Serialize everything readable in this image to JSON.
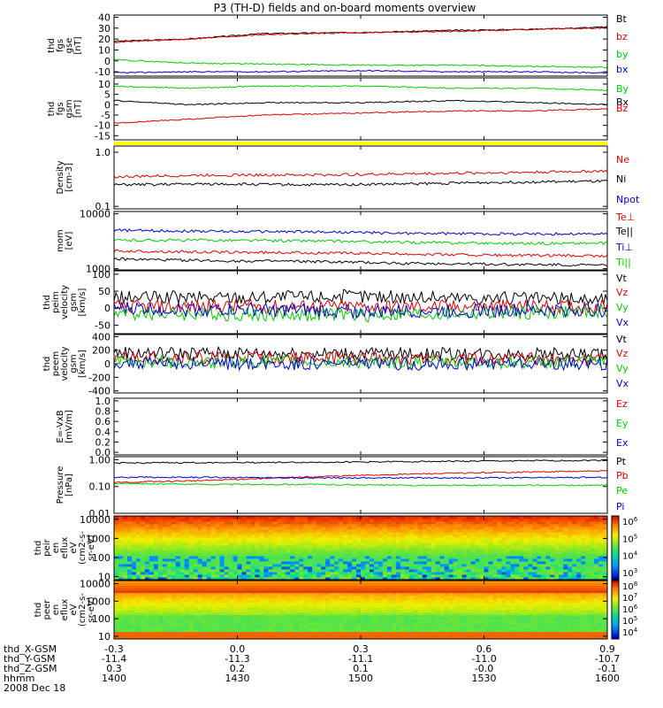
{
  "title": "P3 (TH-D) fields and on-board moments overview",
  "colors": {
    "black": "#000000",
    "red": "#dd0000",
    "green": "#00cc00",
    "blue": "#0000cc",
    "yellow": "#ffff00"
  },
  "chart_data": [
    {
      "type": "line",
      "id": "fgs_gse",
      "ylabel": [
        "thd",
        "fgs",
        "gse",
        "[nT]"
      ],
      "yticks": [
        "40",
        "30",
        "20",
        "10",
        "0",
        "-10"
      ],
      "ylim": [
        -14,
        42
      ],
      "series": [
        {
          "name": "Bt",
          "color": "#000000",
          "x": [
            0,
            0.15,
            0.3,
            0.5,
            0.7,
            0.85,
            1
          ],
          "y": [
            18,
            20,
            25,
            26,
            28,
            29,
            31
          ]
        },
        {
          "name": "bz",
          "color": "#dd0000",
          "x": [
            0,
            0.15,
            0.3,
            0.5,
            0.7,
            0.85,
            1
          ],
          "y": [
            17,
            20,
            24,
            26,
            27,
            29,
            30
          ]
        },
        {
          "name": "by",
          "color": "#00cc00",
          "x": [
            0,
            0.15,
            0.3,
            0.5,
            0.7,
            0.85,
            1
          ],
          "y": [
            1,
            -2,
            -3,
            -4,
            -4,
            -5,
            -6
          ]
        },
        {
          "name": "bx",
          "color": "#0000cc",
          "x": [
            0,
            0.15,
            0.3,
            0.5,
            0.7,
            0.85,
            1
          ],
          "y": [
            -11,
            -10,
            -10,
            -9,
            -10,
            -10,
            -11
          ]
        }
      ]
    },
    {
      "type": "line",
      "id": "fgs_gsm",
      "ylabel": [
        "thd",
        "fgs",
        "gsm",
        "[nT]"
      ],
      "yticks": [
        "10",
        "5",
        "0",
        "-5",
        "-10",
        "-15"
      ],
      "ylim": [
        -17,
        13
      ],
      "series": [
        {
          "name": "By",
          "color": "#00cc00",
          "x": [
            0,
            0.15,
            0.3,
            0.5,
            0.7,
            0.85,
            1
          ],
          "y": [
            9,
            8,
            9,
            9,
            8,
            8,
            7
          ]
        },
        {
          "name": "Bx",
          "color": "#000000",
          "x": [
            0,
            0.15,
            0.3,
            0.5,
            0.7,
            0.85,
            1
          ],
          "y": [
            2,
            0,
            1,
            1,
            2,
            1,
            0
          ]
        },
        {
          "name": "Bz",
          "color": "#dd0000",
          "x": [
            0,
            0.15,
            0.3,
            0.5,
            0.7,
            0.85,
            1
          ],
          "y": [
            -9,
            -7,
            -5,
            -4,
            -3,
            -3,
            -2
          ]
        }
      ]
    },
    {
      "type": "line",
      "id": "density",
      "scale": "log",
      "ylabel": [
        "Density",
        "[cm-3]"
      ],
      "yticks": [
        "1.0",
        "0.1"
      ],
      "ylim": [
        0.09,
        1.3
      ],
      "series": [
        {
          "name": "Ne",
          "color": "#dd0000",
          "x": [
            0,
            0.2,
            0.4,
            0.6,
            0.8,
            1
          ],
          "y": [
            0.35,
            0.38,
            0.38,
            0.4,
            0.42,
            0.45
          ]
        },
        {
          "name": "Ni",
          "color": "#000000",
          "x": [
            0,
            0.2,
            0.4,
            0.6,
            0.8,
            1
          ],
          "y": [
            0.25,
            0.26,
            0.25,
            0.26,
            0.28,
            0.29
          ]
        },
        {
          "name": "Npot",
          "color": "#0000cc",
          "x": [],
          "y": []
        }
      ]
    },
    {
      "type": "line",
      "id": "temperature",
      "scale": "log",
      "ylabel": [
        "mom",
        "[eV]"
      ],
      "yticks": [
        "10000",
        "1000"
      ],
      "ylim": [
        950,
        11000
      ],
      "series": [
        {
          "name": "Te⊥",
          "color": "#dd0000",
          "x": [
            0,
            0.2,
            0.4,
            0.6,
            0.8,
            1
          ],
          "y": [
            2100,
            2000,
            1950,
            1850,
            1750,
            1700
          ]
        },
        {
          "name": "Te||",
          "color": "#000000",
          "x": [
            0,
            0.2,
            0.4,
            0.6,
            0.8,
            1
          ],
          "y": [
            1500,
            1400,
            1350,
            1250,
            1200,
            1150
          ]
        },
        {
          "name": "Ti⊥",
          "color": "#0000cc",
          "x": [
            0,
            0.2,
            0.4,
            0.6,
            0.8,
            1
          ],
          "y": [
            5000,
            4800,
            4700,
            4400,
            4300,
            4300
          ]
        },
        {
          "name": "Ti||",
          "color": "#00cc00",
          "x": [
            0,
            0.2,
            0.4,
            0.6,
            0.8,
            1
          ],
          "y": [
            3300,
            3300,
            3200,
            3000,
            2900,
            2900
          ]
        }
      ]
    },
    {
      "type": "line",
      "id": "peim_velocity",
      "ylabel": [
        "thd",
        "peim",
        "velocity",
        "gsm",
        "[km/s]"
      ],
      "yticks": [
        "100",
        "50",
        "0",
        "-50"
      ],
      "ylim": [
        -75,
        110
      ],
      "series": [
        {
          "name": "Vt",
          "color": "#000000",
          "x": [
            0,
            0.5,
            1
          ],
          "y": [
            30,
            35,
            25
          ]
        },
        {
          "name": "Vz",
          "color": "#dd0000",
          "x": [
            0,
            0.5,
            1
          ],
          "y": [
            5,
            5,
            5
          ]
        },
        {
          "name": "Vy",
          "color": "#00cc00",
          "x": [
            0,
            0.5,
            1
          ],
          "y": [
            -15,
            -20,
            -10
          ]
        },
        {
          "name": "Vx",
          "color": "#0000cc",
          "x": [
            0,
            0.5,
            1
          ],
          "y": [
            0,
            -10,
            -5
          ]
        }
      ]
    },
    {
      "type": "line",
      "id": "peem_velocity",
      "ylabel": [
        "thd",
        "peem",
        "velocity",
        "gsm",
        "[km/s]"
      ],
      "yticks": [
        "400",
        "200",
        "0",
        "-200",
        "-400"
      ],
      "ylim": [
        -430,
        430
      ],
      "series": [
        {
          "name": "Vt",
          "color": "#000000",
          "x": [
            0,
            0.5,
            1
          ],
          "y": [
            160,
            150,
            140
          ]
        },
        {
          "name": "Vz",
          "color": "#dd0000",
          "x": [
            0,
            0.5,
            1
          ],
          "y": [
            90,
            80,
            70
          ]
        },
        {
          "name": "Vy",
          "color": "#00cc00",
          "x": [
            0,
            0.5,
            1
          ],
          "y": [
            30,
            20,
            20
          ]
        },
        {
          "name": "Vx",
          "color": "#0000cc",
          "x": [
            0,
            0.5,
            1
          ],
          "y": [
            10,
            0,
            0
          ]
        }
      ]
    },
    {
      "type": "line",
      "id": "efield",
      "ylabel": [
        "E=-VxB",
        "[mV/m]"
      ],
      "yticks": [
        "1.0",
        "0.8",
        "0.6",
        "0.4",
        "0.2",
        "0.0"
      ],
      "ylim": [
        -0.05,
        1.05
      ],
      "series": [
        {
          "name": "Ez",
          "color": "#dd0000",
          "x": [],
          "y": []
        },
        {
          "name": "Ey",
          "color": "#00cc00",
          "x": [],
          "y": []
        },
        {
          "name": "Ex",
          "color": "#0000cc",
          "x": [],
          "y": []
        }
      ]
    },
    {
      "type": "line",
      "id": "pressure",
      "scale": "log",
      "ylabel": [
        "Pressure",
        "[nPa]"
      ],
      "yticks": [
        "1.00",
        "0.10",
        "0.01"
      ],
      "ylim": [
        0.01,
        1.3
      ],
      "series": [
        {
          "name": "Pt",
          "color": "#000000",
          "x": [
            0,
            0.2,
            0.4,
            0.6,
            0.8,
            1
          ],
          "y": [
            0.75,
            0.78,
            0.8,
            0.85,
            0.9,
            0.95
          ]
        },
        {
          "name": "Pb",
          "color": "#dd0000",
          "x": [
            0,
            0.2,
            0.4,
            0.6,
            0.8,
            1
          ],
          "y": [
            0.14,
            0.17,
            0.23,
            0.29,
            0.34,
            0.38
          ]
        },
        {
          "name": "Pe",
          "color": "#00cc00",
          "x": [
            0,
            0.2,
            0.4,
            0.6,
            0.8,
            1
          ],
          "y": [
            0.13,
            0.12,
            0.12,
            0.11,
            0.11,
            0.11
          ]
        },
        {
          "name": "Pi",
          "color": "#0000cc",
          "x": [
            0,
            0.2,
            0.4,
            0.6,
            0.8,
            1
          ],
          "y": [
            0.22,
            0.22,
            0.21,
            0.21,
            0.21,
            0.22
          ]
        }
      ]
    },
    {
      "type": "heatmap",
      "id": "peir_eflux",
      "ylabel": [
        "thd",
        "peir",
        "en",
        "eflux",
        "eV",
        "(cm2-s-",
        "sr-eV)"
      ],
      "yticks": [
        "10000",
        "1000",
        "100",
        "10"
      ],
      "colorbar_ticks": [
        "10^6",
        "10^5",
        "10^4",
        "10^3"
      ]
    },
    {
      "type": "heatmap",
      "id": "peer_eflux",
      "ylabel": [
        "thd",
        "peer",
        "en",
        "eflux",
        "eV",
        "(cm2-s-",
        "sr-eV)"
      ],
      "yticks": [
        "10000",
        "1000",
        "100",
        "10"
      ],
      "colorbar_ticks": [
        "10^8",
        "10^7",
        "10^6",
        "10^5",
        "10^4"
      ]
    }
  ],
  "xaxis": {
    "row_labels": [
      "thd_X-GSM",
      "thd_Y-GSM",
      "thd_Z-GSM",
      "hhmm",
      "2008 Dec 18"
    ],
    "columns": [
      [
        "-0.3",
        "-11.4",
        "0.3",
        "1400"
      ],
      [
        "0.0",
        "-11.3",
        "0.2",
        "1430"
      ],
      [
        "0.3",
        "-11.1",
        "0.1",
        "1500"
      ],
      [
        "0.6",
        "-11.0",
        "-0.0",
        "1530"
      ],
      [
        "0.9",
        "-10.7",
        "-0.1",
        "1600"
      ]
    ]
  }
}
